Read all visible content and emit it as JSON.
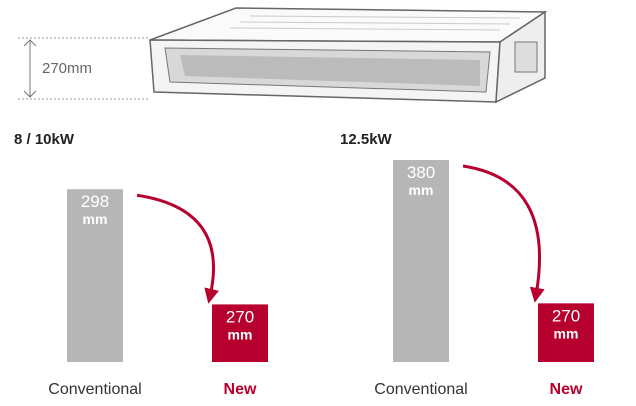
{
  "dimension_label": "270mm",
  "chart_data": [
    {
      "type": "bar",
      "title": "8 / 10kW",
      "categories": [
        "Conventional",
        "New"
      ],
      "values": [
        298,
        270
      ],
      "value_labels": [
        "298 mm",
        "270 mm"
      ],
      "colors": [
        "#b6b6b6",
        "#b8002f"
      ],
      "category_colors": [
        "#333333",
        "#b8002f"
      ],
      "ylim": [
        256,
        300
      ]
    },
    {
      "type": "bar",
      "title": "12.5kW",
      "categories": [
        "Conventional",
        "New"
      ],
      "values": [
        380,
        270
      ],
      "value_labels": [
        "380 mm",
        "270 mm"
      ],
      "colors": [
        "#b6b6b6",
        "#b8002f"
      ],
      "category_colors": [
        "#333333",
        "#b8002f"
      ],
      "ylim": [
        225,
        380
      ]
    }
  ]
}
